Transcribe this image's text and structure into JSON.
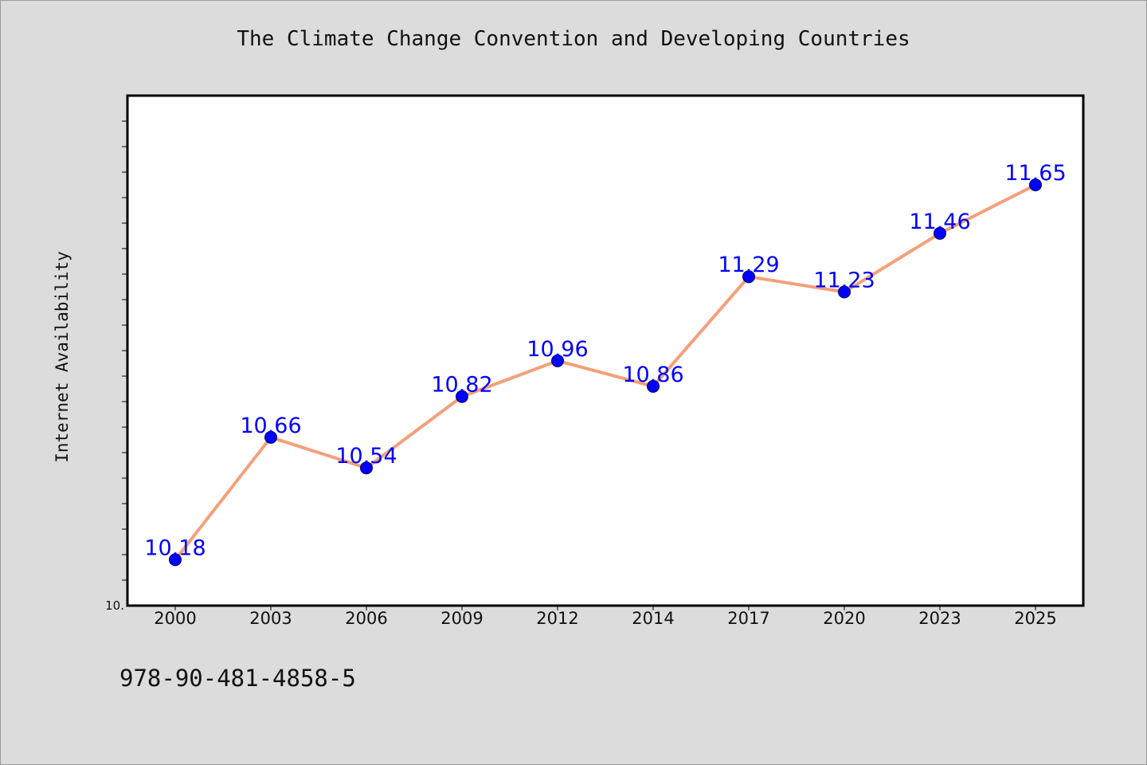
{
  "header": {
    "title": "The Climate Change Convention and Developing Countries"
  },
  "footer": {
    "isbn": "978-90-481-4858-5"
  },
  "colors": {
    "background": "#dcdcdc",
    "plot_background": "#ffffff",
    "line": "#f4a07a",
    "marker": "#0000ff",
    "data_label": "#0000ff"
  },
  "chart_data": {
    "type": "line",
    "title": "The Climate Change Convention and Developing Countries",
    "xlabel": "",
    "ylabel": "Internet Availability",
    "categories": [
      "2000",
      "2003",
      "2006",
      "2009",
      "2012",
      "2014",
      "2017",
      "2020",
      "2023",
      "2025"
    ],
    "series": [
      {
        "values": [
          10.18,
          10.66,
          10.54,
          10.82,
          10.96,
          10.86,
          11.29,
          11.23,
          11.46,
          11.65
        ]
      }
    ],
    "data_labels": [
      "10.18",
      "10.66",
      "10.54",
      "10.82",
      "10.96",
      "10.86",
      "11.29",
      "11.23",
      "11.46",
      "11.65"
    ],
    "ylim": [
      10.0,
      12.0
    ],
    "y_tick_labels": [
      "10."
    ],
    "y_minor_tick_step": 0.1,
    "grid": false,
    "legend": "none"
  }
}
